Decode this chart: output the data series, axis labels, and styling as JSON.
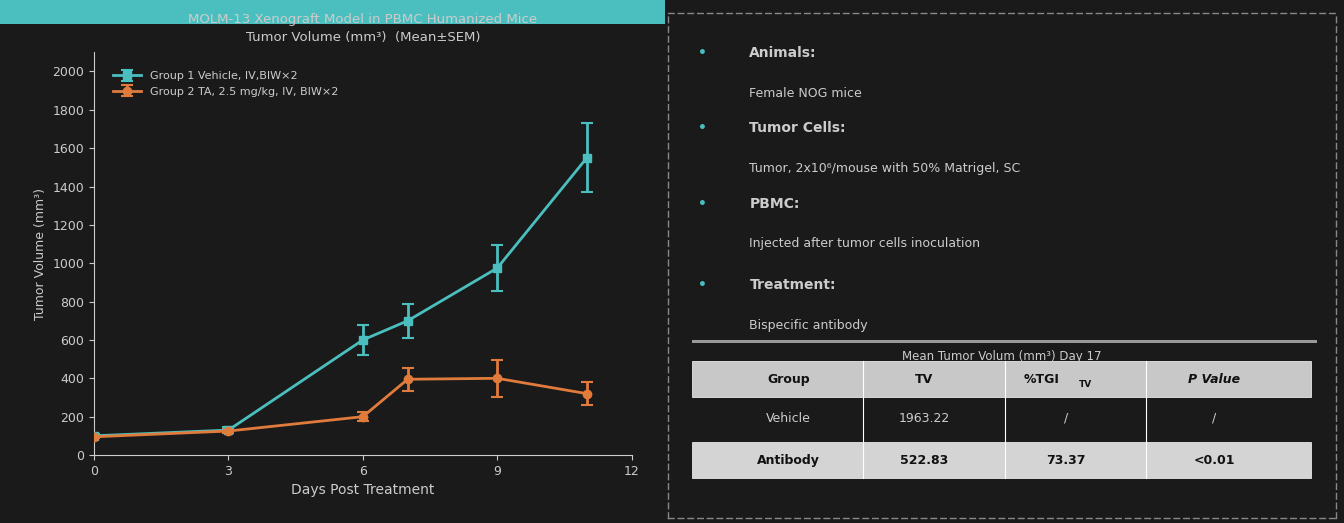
{
  "title_line1": "MOLM-13 Xenograft Model in PBMC Humanized Mice",
  "title_line2": "Tumor Volume (mm³)  (Mean±SEM)",
  "xlabel": "Days Post Treatment",
  "ylabel": "Tumor Volume (mm³)",
  "xlim": [
    0,
    12
  ],
  "ylim": [
    0,
    2100
  ],
  "yticks": [
    0,
    200,
    400,
    600,
    800,
    1000,
    1200,
    1400,
    1600,
    1800,
    2000
  ],
  "xticks": [
    0,
    3,
    6,
    9,
    12
  ],
  "group1_x": [
    0,
    3,
    6,
    7,
    9,
    11
  ],
  "group1_y": [
    100,
    130,
    600,
    700,
    975,
    1550
  ],
  "group1_err": [
    10,
    15,
    80,
    90,
    120,
    180
  ],
  "group1_color": "#4BBFBF",
  "group1_label": "Group 1 Vehicle, IV,BIW×2",
  "group2_x": [
    0,
    3,
    6,
    7,
    9,
    11
  ],
  "group2_y": [
    95,
    125,
    200,
    395,
    400,
    320
  ],
  "group2_err": [
    8,
    12,
    25,
    60,
    95,
    60
  ],
  "group2_color": "#E07B3C",
  "group2_label": "Group 2 TA, 2.5 mg/kg, IV, BIW×2",
  "background_color": "#1a1a1a",
  "text_color": "#cccccc",
  "top_bar_color": "#4BBFBF",
  "border_color": "#888888",
  "bullet_color": "#4BBFBF",
  "right_panel_texts": [
    {
      "bold": "Animals:",
      "normal": "Female NOG mice"
    },
    {
      "bold": "Tumor Cells:",
      "normal": "Tumor, 2x10⁶/mouse with 50% Matrigel, SC"
    },
    {
      "bold": "PBMC:",
      "normal": "Injected after tumor cells inoculation"
    },
    {
      "bold": "Treatment:",
      "normal": "Bispecific antibody"
    }
  ],
  "table_title": "Mean Tumor Volum (mm³) Day 17",
  "table_headers": [
    "Group",
    "TV",
    "%TGI",
    "P Value"
  ],
  "table_row1": [
    "Vehicle",
    "1963.22",
    "/",
    "/"
  ],
  "table_row2": [
    "Antibody",
    "522.83",
    "73.37",
    "<0.01"
  ],
  "table_header_bg": "#c8c8c8",
  "table_row2_bg": "#d4d4d4"
}
